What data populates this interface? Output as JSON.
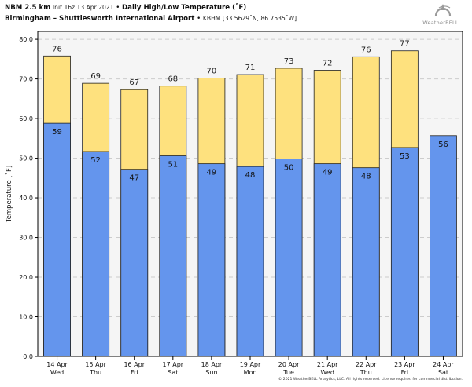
{
  "header": {
    "model": "NBM 2.5 km",
    "init": "Init 16z 13 Apr 2021",
    "title": "Daily High/Low Temperature (˚F)",
    "location": "Birmingham – Shuttlesworth International Airport",
    "station": "KBHM [33.5629˚N, 86.7535˚W]"
  },
  "logo": {
    "text": "WeatherBELL"
  },
  "footer": {
    "text": "© 2021 WeatherBELL Analytics, LLC. All rights reserved. License required for commercial distribution."
  },
  "colors": {
    "high": "#fee17e",
    "low": "#6495ed",
    "plot_bg": "#f5f5f5",
    "grid": "#cccccc"
  },
  "chart_data": {
    "type": "bar",
    "title": "Daily High/Low Temperature (˚F)",
    "ylabel": "Temperature [˚F]",
    "xlabel": "",
    "ylim": [
      0,
      82
    ],
    "yticks": [
      0,
      10,
      20,
      30,
      40,
      50,
      60,
      70,
      80
    ],
    "grid": true,
    "categories": [
      {
        "date": "14 Apr",
        "dow": "Wed"
      },
      {
        "date": "15 Apr",
        "dow": "Thu"
      },
      {
        "date": "16 Apr",
        "dow": "Fri"
      },
      {
        "date": "17 Apr",
        "dow": "Sat"
      },
      {
        "date": "18 Apr",
        "dow": "Sun"
      },
      {
        "date": "19 Apr",
        "dow": "Mon"
      },
      {
        "date": "20 Apr",
        "dow": "Tue"
      },
      {
        "date": "21 Apr",
        "dow": "Wed"
      },
      {
        "date": "22 Apr",
        "dow": "Thu"
      },
      {
        "date": "23 Apr",
        "dow": "Fri"
      },
      {
        "date": "24 Apr",
        "dow": "Sat"
      }
    ],
    "series": [
      {
        "label_values": [
          76,
          69,
          67,
          68,
          70,
          71,
          73,
          72,
          76,
          77,
          null
        ],
        "values": [
          75.8,
          68.9,
          67.3,
          68.2,
          70.2,
          71.1,
          72.7,
          72.2,
          75.6,
          77.1,
          null
        ]
      },
      {
        "label_values": [
          59,
          52,
          47,
          51,
          49,
          48,
          50,
          49,
          48,
          53,
          56
        ],
        "values": [
          58.8,
          51.7,
          47.2,
          50.6,
          48.6,
          47.9,
          49.8,
          48.6,
          47.6,
          52.7,
          55.7
        ]
      }
    ]
  }
}
